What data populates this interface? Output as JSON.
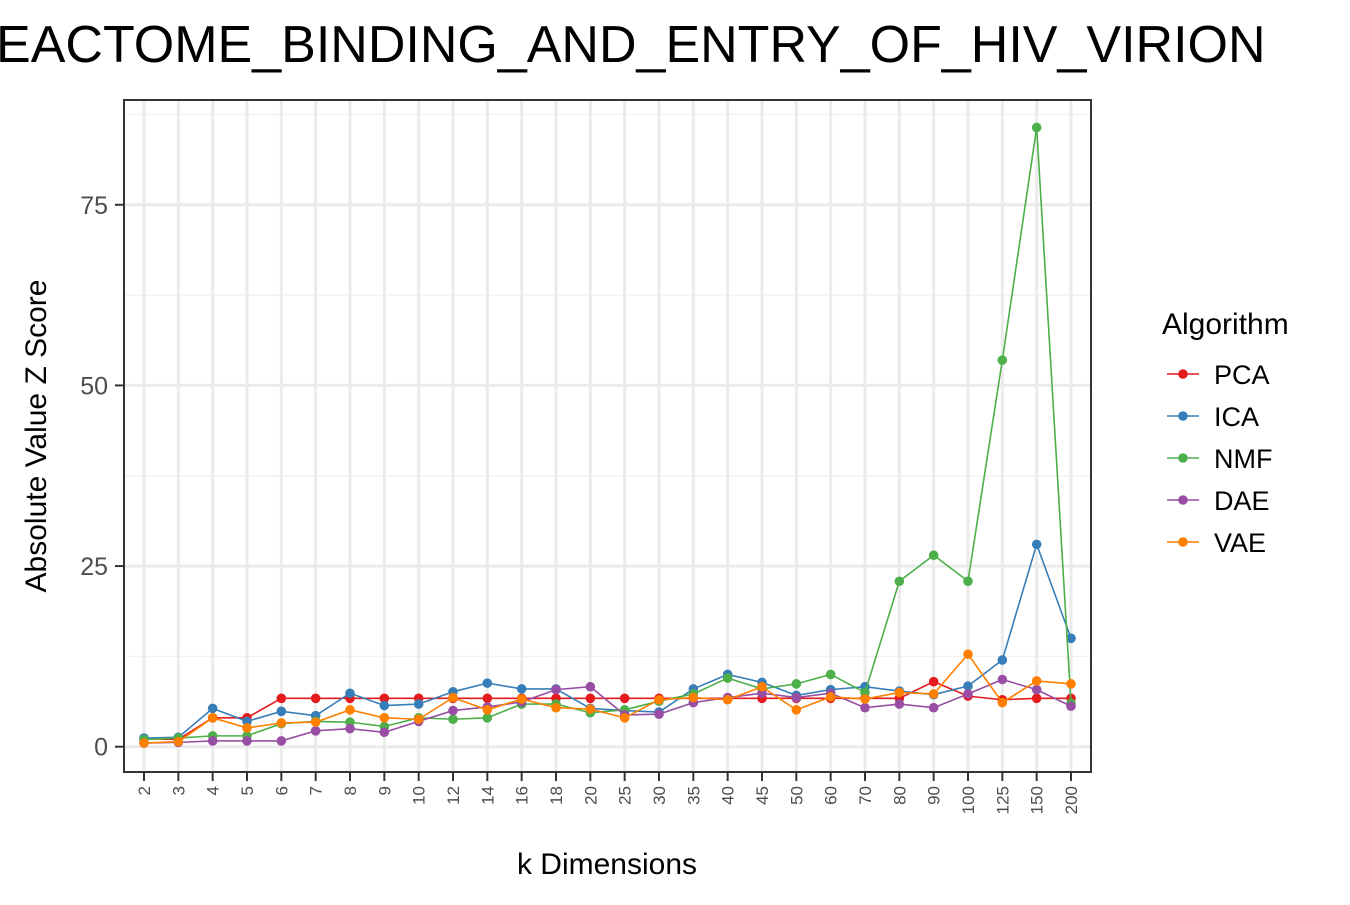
{
  "chart_data": {
    "type": "line",
    "title": "REACTOME_BINDING_AND_ENTRY_OF_HIV_VIRION",
    "xlabel": "k Dimensions",
    "ylabel": "Absolute Value Z Score",
    "categories": [
      "2",
      "3",
      "4",
      "5",
      "6",
      "7",
      "8",
      "9",
      "10",
      "12",
      "14",
      "16",
      "18",
      "20",
      "25",
      "30",
      "35",
      "40",
      "45",
      "50",
      "60",
      "70",
      "80",
      "90",
      "100",
      "125",
      "150",
      "200"
    ],
    "y_ticks": [
      0,
      25,
      50,
      75
    ],
    "y_tick_labels": [
      "0",
      "25",
      "50",
      "75"
    ],
    "ylim": [
      -3.5,
      89.5
    ],
    "grid": true,
    "legend": {
      "title": "Algorithm",
      "position": "right"
    },
    "series": [
      {
        "name": "PCA",
        "color": "#E41A1C",
        "values": [
          1.1,
          1.0,
          4.0,
          4.0,
          6.7,
          6.7,
          6.7,
          6.7,
          6.7,
          6.7,
          6.7,
          6.7,
          6.7,
          6.7,
          6.7,
          6.7,
          6.7,
          6.7,
          6.7,
          6.7,
          6.7,
          6.7,
          6.7,
          9.0,
          7.0,
          6.5,
          6.7,
          6.7
        ]
      },
      {
        "name": "ICA",
        "color": "#377EB8",
        "values": [
          1.2,
          1.3,
          5.3,
          3.5,
          4.9,
          4.3,
          7.4,
          5.7,
          5.9,
          7.6,
          8.8,
          8.0,
          8.0,
          5.3,
          5.0,
          4.8,
          8.0,
          10.0,
          8.9,
          7.1,
          7.9,
          8.3,
          7.7,
          7.2,
          8.4,
          12.0,
          28.0,
          15.0
        ]
      },
      {
        "name": "NMF",
        "color": "#4DAF4A",
        "values": [
          1.0,
          1.2,
          1.5,
          1.5,
          3.2,
          3.5,
          3.4,
          2.8,
          4.0,
          3.8,
          4.0,
          5.9,
          5.9,
          4.7,
          5.1,
          6.3,
          7.3,
          9.5,
          8.0,
          8.7,
          10.0,
          7.5,
          22.9,
          26.5,
          22.9,
          53.5,
          85.7,
          6.0
        ]
      },
      {
        "name": "DAE",
        "color": "#984EA3",
        "values": [
          0.5,
          0.6,
          0.8,
          0.8,
          0.8,
          2.2,
          2.5,
          2.0,
          3.5,
          5.0,
          5.5,
          6.2,
          7.9,
          8.3,
          4.4,
          4.5,
          6.1,
          6.8,
          7.4,
          6.8,
          7.4,
          5.4,
          5.9,
          5.4,
          7.3,
          9.3,
          7.9,
          5.6
        ]
      },
      {
        "name": "VAE",
        "color": "#FF7F00",
        "values": [
          0.5,
          0.7,
          4.0,
          2.6,
          3.3,
          3.4,
          5.1,
          4.0,
          3.8,
          6.8,
          5.1,
          6.6,
          5.4,
          5.2,
          4.0,
          6.5,
          6.8,
          6.5,
          8.3,
          5.1,
          6.9,
          6.6,
          7.5,
          7.3,
          12.8,
          6.1,
          9.1,
          8.7
        ]
      }
    ]
  }
}
